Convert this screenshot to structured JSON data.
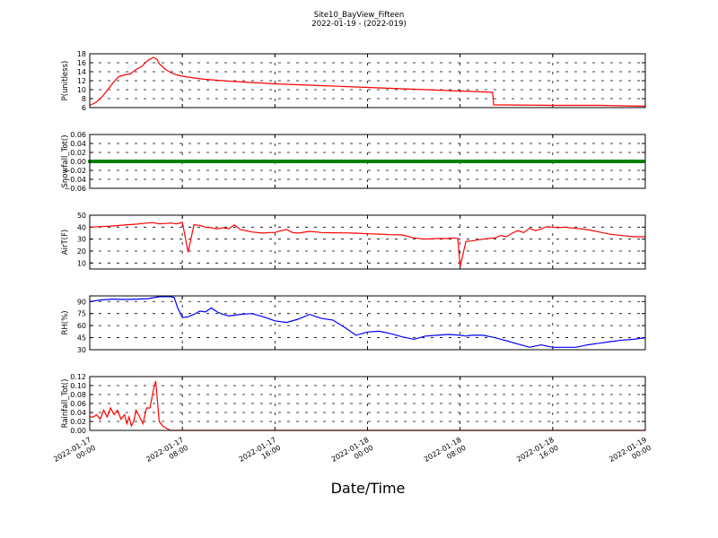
{
  "figure": {
    "title": "Site10_BayView_Fifteen",
    "subtitle": "2022-01-19 - (2022-019)",
    "xlabel": "Date/Time"
  },
  "chart_data": [
    {
      "type": "line",
      "ylabel": "P(unitless)",
      "ylim": [
        6,
        18
      ],
      "yticks": [
        "6",
        "8",
        "10",
        "12",
        "14",
        "16",
        "18"
      ],
      "xlim_hours": [
        0,
        48
      ],
      "grid": true,
      "series": [
        {
          "color": "#ff0000",
          "x": [
            0,
            0.5,
            1,
            1.5,
            2,
            2.5,
            3,
            3.5,
            4,
            4.5,
            5,
            5.5,
            5.8,
            6,
            6.5,
            7,
            7.5,
            8,
            9,
            10,
            12,
            14,
            16,
            18,
            20,
            22,
            24,
            26,
            28,
            30,
            32,
            34,
            34.8,
            34.9,
            36,
            40,
            44,
            48
          ],
          "y": [
            6.5,
            7.1,
            8.2,
            9.8,
            11.5,
            12.9,
            13.3,
            13.5,
            14.5,
            15.2,
            16.5,
            17.2,
            16.8,
            15.8,
            14.6,
            13.8,
            13.3,
            13.0,
            12.6,
            12.3,
            11.9,
            11.6,
            11.3,
            11.1,
            10.9,
            10.7,
            10.5,
            10.3,
            10.1,
            9.9,
            9.7,
            9.5,
            9.4,
            6.6,
            6.6,
            6.5,
            6.5,
            6.3
          ]
        }
      ]
    },
    {
      "type": "scatter",
      "ylabel": "Snowfall_Tot()",
      "ylim": [
        -0.06,
        0.06
      ],
      "yticks": [
        "−0.06",
        "−0.04",
        "−0.02",
        "0.00",
        "0.02",
        "0.04",
        "0.06"
      ],
      "xlim_hours": [
        0,
        48
      ],
      "grid": true,
      "series": [
        {
          "color": "#008000",
          "constant": 0.0,
          "note": ""
        }
      ]
    },
    {
      "type": "line",
      "ylabel": "AirT(F)",
      "ylim": [
        5,
        50
      ],
      "yticks": [
        "10",
        "20",
        "30",
        "40",
        "50"
      ],
      "xlim_hours": [
        0,
        48
      ],
      "grid": true,
      "series": [
        {
          "color": "#ff0000",
          "x": [
            0,
            1,
            2,
            3,
            4,
            4.5,
            5,
            5.5,
            6,
            6.5,
            7,
            7.3,
            7.5,
            7.8,
            8,
            8.5,
            9,
            9.5,
            10,
            10.5,
            11,
            11.5,
            12,
            12.5,
            13,
            14,
            15,
            15.5,
            16,
            16.5,
            17,
            17.5,
            18,
            19,
            20,
            21,
            22,
            23,
            24,
            25,
            26,
            27,
            28,
            29,
            30,
            31,
            31.5,
            31.8,
            32,
            32.5,
            33,
            34,
            34.5,
            35,
            35.5,
            36,
            36.5,
            37,
            37.5,
            38,
            38.5,
            39,
            39.5,
            40,
            40.5,
            41,
            42,
            43,
            44,
            45,
            46,
            47,
            48
          ],
          "y": [
            40,
            40.5,
            41,
            41.8,
            42.5,
            43,
            43.5,
            43.8,
            42.8,
            43,
            43.5,
            43,
            42.8,
            43.5,
            44,
            19,
            42,
            41.5,
            40,
            39.5,
            38.5,
            39.5,
            38.7,
            42,
            38,
            36,
            35,
            35.5,
            35.5,
            37,
            38,
            35.5,
            35,
            36.5,
            35.5,
            35.3,
            35.2,
            35,
            34.5,
            34.2,
            33.7,
            33.5,
            31,
            30,
            30.5,
            30.5,
            31,
            30.5,
            7,
            28,
            28.5,
            30,
            30.5,
            31,
            33,
            32,
            35,
            37,
            35.5,
            39,
            37,
            38.5,
            40.5,
            40,
            39.5,
            40,
            39,
            38,
            36,
            34,
            33,
            32,
            32
          ]
        }
      ]
    },
    {
      "type": "line",
      "ylabel": "RH(%)",
      "ylim": [
        30,
        97
      ],
      "yticks": [
        "30",
        "45",
        "60",
        "75",
        "90"
      ],
      "xlim_hours": [
        0,
        48
      ],
      "grid": true,
      "series": [
        {
          "color": "#0000ff",
          "x": [
            0,
            1,
            2,
            3,
            4,
            5,
            6,
            7,
            7.3,
            7.6,
            8,
            8.5,
            9,
            9.5,
            10,
            10.5,
            11,
            11.5,
            12,
            12.5,
            13,
            14,
            15,
            16,
            17,
            18,
            19,
            20,
            21,
            22,
            23,
            24,
            25,
            26,
            27,
            28,
            29,
            30,
            31,
            32,
            32.5,
            33,
            34,
            35,
            36,
            37,
            38,
            39,
            40,
            41,
            42,
            43,
            44,
            45,
            46,
            47,
            48
          ],
          "y": [
            90,
            92,
            93,
            92.5,
            93,
            93.5,
            96,
            96,
            95,
            82,
            70,
            71,
            74,
            78,
            77,
            82,
            77,
            74,
            72,
            73,
            74,
            75,
            71,
            66,
            64,
            68,
            74,
            69,
            67,
            58,
            48,
            52,
            53,
            50,
            46,
            43,
            47,
            48,
            49,
            48,
            47,
            48,
            48,
            45,
            41,
            37,
            33,
            36,
            33,
            33,
            33,
            36,
            38,
            40,
            42,
            43,
            45
          ]
        }
      ]
    },
    {
      "type": "line",
      "ylabel": "Rainfall_Tot()",
      "ylim": [
        0,
        0.12
      ],
      "yticks": [
        "0.00",
        "0.02",
        "0.04",
        "0.06",
        "0.08",
        "0.10",
        "0.12"
      ],
      "xlim_hours": [
        0,
        48
      ],
      "grid": true,
      "series": [
        {
          "color": "#ff0000",
          "x": [
            0,
            0.3,
            0.6,
            0.9,
            1.2,
            1.5,
            1.8,
            2.1,
            2.4,
            2.7,
            3,
            3.2,
            3.4,
            3.6,
            3.8,
            4,
            4.3,
            4.6,
            4.9,
            5.2,
            5.5,
            5.7,
            6,
            6.3,
            6.6,
            7,
            7.3,
            8,
            10,
            14,
            20,
            24,
            30,
            36,
            42,
            48
          ],
          "y": [
            0.03,
            0.03,
            0.035,
            0.025,
            0.045,
            0.03,
            0.05,
            0.035,
            0.045,
            0.025,
            0.035,
            0.015,
            0.03,
            0.01,
            0.02,
            0.045,
            0.03,
            0.015,
            0.05,
            0.05,
            0.09,
            0.11,
            0.02,
            0.01,
            0.005,
            0,
            0,
            0,
            0,
            0,
            0,
            0,
            0,
            0,
            0,
            0
          ]
        }
      ]
    }
  ],
  "x_axis": {
    "tick_hours": [
      0,
      8,
      16,
      24,
      32,
      40,
      48
    ],
    "tick_labels": [
      [
        "2022-01-17",
        "00:00"
      ],
      [
        "2022-01-17",
        "08:00"
      ],
      [
        "2022-01-17",
        "16:00"
      ],
      [
        "2022-01-18",
        "00:00"
      ],
      [
        "2022-01-18",
        "08:00"
      ],
      [
        "2022-01-18",
        "16:00"
      ],
      [
        "2022-01-19",
        "00:00"
      ]
    ]
  }
}
